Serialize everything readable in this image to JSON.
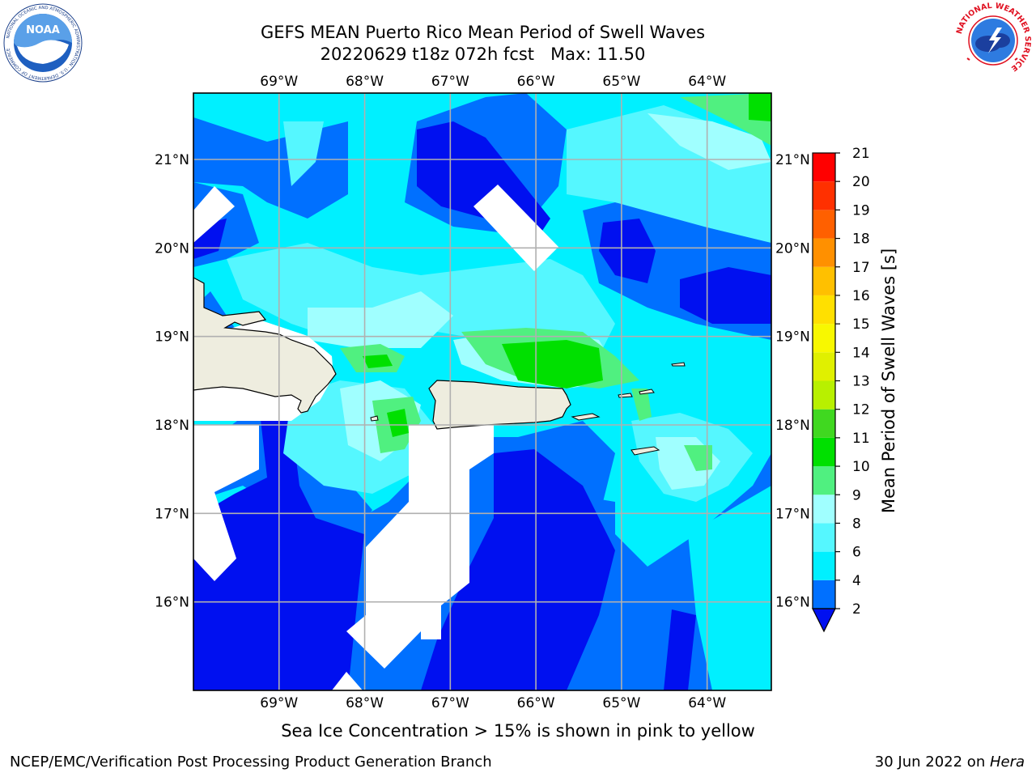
{
  "header": {
    "title_line1": "GEFS MEAN Puerto Rico Mean Period of Swell Waves",
    "title_line2": "20220629 t18z 072h fcst   Max: 11.50"
  },
  "logos": {
    "left": "NOAA",
    "left_ring_text": "NATIONAL OCEANIC AND ATMOSPHERIC ADMINISTRATION · U.S. DEPARTMENT OF COMMERCE",
    "right_ring_text": "NATIONAL WEATHER SERVICE"
  },
  "map": {
    "lon_labels": [
      "69°W",
      "68°W",
      "67°W",
      "66°W",
      "65°W",
      "64°W"
    ],
    "lat_labels": [
      "21°N",
      "20°N",
      "19°N",
      "18°N",
      "17°N",
      "16°N"
    ],
    "lon_values": [
      -69,
      -68,
      -67,
      -66,
      -65,
      -64
    ],
    "lat_values": [
      21,
      20,
      19,
      18,
      17,
      16
    ],
    "extent": {
      "lon": [
        -70.0,
        -63.25
      ],
      "lat": [
        15.0,
        21.75
      ]
    },
    "land_color": "#eeeddf",
    "grid_color": "#b0b0b0"
  },
  "colorbar": {
    "label": "Mean Period of Swell Waves [s]",
    "ticks": [
      2,
      4,
      6,
      8,
      9,
      10,
      11,
      12,
      13,
      14,
      15,
      16,
      17,
      18,
      19,
      20,
      21
    ],
    "levels": [
      {
        "lo": 2,
        "hi": 4,
        "color": "#0070ff"
      },
      {
        "lo": 4,
        "hi": 6,
        "color": "#00f0ff"
      },
      {
        "lo": 6,
        "hi": 8,
        "color": "#55f7ff"
      },
      {
        "lo": 8,
        "hi": 9,
        "color": "#a0ffff"
      },
      {
        "lo": 9,
        "hi": 10,
        "color": "#50f080"
      },
      {
        "lo": 10,
        "hi": 11,
        "color": "#00e000"
      },
      {
        "lo": 11,
        "hi": 12,
        "color": "#40d820"
      },
      {
        "lo": 12,
        "hi": 13,
        "color": "#b8f000"
      },
      {
        "lo": 13,
        "hi": 14,
        "color": "#e0f000"
      },
      {
        "lo": 14,
        "hi": 15,
        "color": "#f8f800"
      },
      {
        "lo": 15,
        "hi": 16,
        "color": "#ffe000"
      },
      {
        "lo": 16,
        "hi": 17,
        "color": "#ffc000"
      },
      {
        "lo": 17,
        "hi": 18,
        "color": "#ff9000"
      },
      {
        "lo": 18,
        "hi": 19,
        "color": "#ff6000"
      },
      {
        "lo": 19,
        "hi": 20,
        "color": "#ff3000"
      },
      {
        "lo": 20,
        "hi": 21,
        "color": "#ff0000"
      }
    ],
    "under_color": "#0010f0"
  },
  "caption": "Sea Ice Concentration > 15% is shown in pink to yellow",
  "footer": {
    "left": "NCEP/EMC/Verification Post Processing Product Generation Branch",
    "date": "30 Jun 2022 on ",
    "machine": "Hera"
  }
}
